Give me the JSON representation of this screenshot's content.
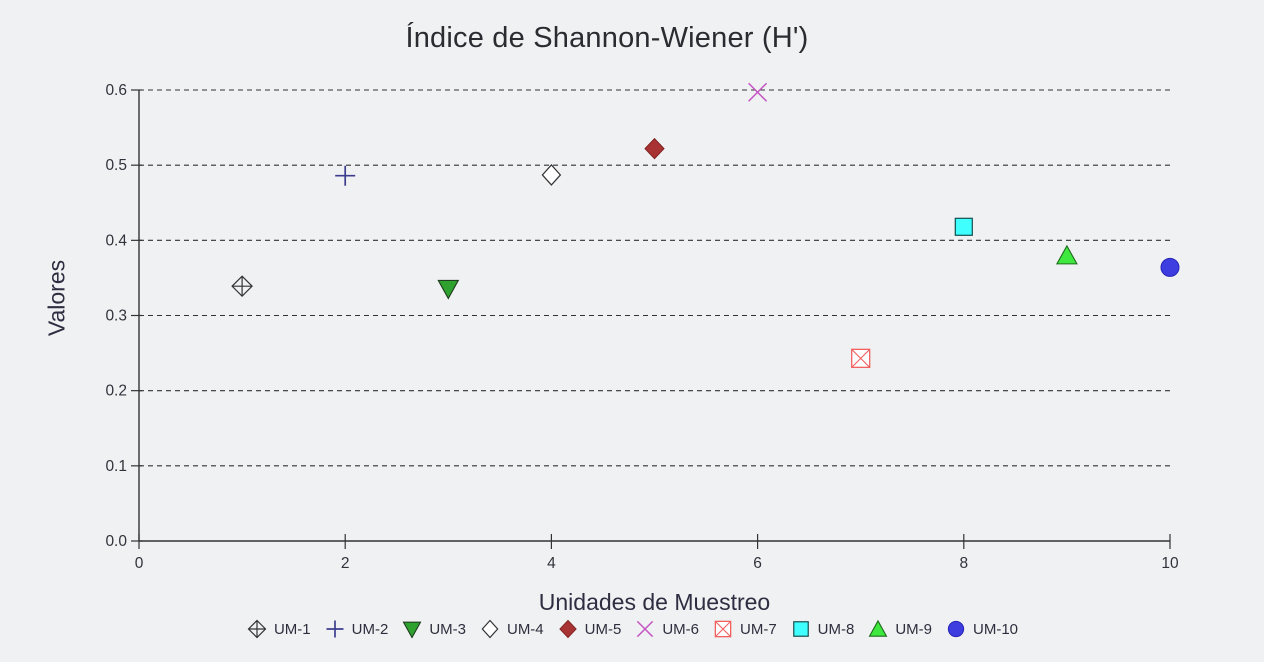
{
  "chart_data": {
    "type": "scatter",
    "title": "Índice de Shannon-Wiener (H')",
    "xlabel": "Unidades de Muestreo",
    "ylabel": "Valores",
    "xlim": [
      0,
      10
    ],
    "ylim": [
      0.0,
      0.6
    ],
    "xticks": [
      0,
      2,
      4,
      6,
      8,
      10
    ],
    "yticks": [
      0.0,
      0.1,
      0.2,
      0.3,
      0.4,
      0.5,
      0.6
    ],
    "grid": "horizontal-dashed",
    "legend_position": "bottom",
    "series": [
      {
        "name": "UM-1",
        "x": 1,
        "y": 0.339,
        "marker": "diamond-plus",
        "color": "#333333",
        "stroke": "#333333"
      },
      {
        "name": "UM-2",
        "x": 2,
        "y": 0.486,
        "marker": "plus",
        "color": "#3d3d8f",
        "stroke": "#3d3d8f"
      },
      {
        "name": "UM-3",
        "x": 3,
        "y": 0.336,
        "marker": "triangle-down",
        "color": "#2fa12f",
        "stroke": "#1f3d1f"
      },
      {
        "name": "UM-4",
        "x": 4,
        "y": 0.487,
        "marker": "diamond-open",
        "color": "#333333",
        "stroke": "#333333"
      },
      {
        "name": "UM-5",
        "x": 5,
        "y": 0.522,
        "marker": "diamond",
        "color": "#a93232",
        "stroke": "#822424"
      },
      {
        "name": "UM-6",
        "x": 6,
        "y": 0.597,
        "marker": "x",
        "color": "#c455c4",
        "stroke": "#c455c4"
      },
      {
        "name": "UM-7",
        "x": 7,
        "y": 0.243,
        "marker": "square-x",
        "color": "#f26060",
        "stroke": "#f26060"
      },
      {
        "name": "UM-8",
        "x": 8,
        "y": 0.418,
        "marker": "square",
        "color": "#3fffff",
        "stroke": "#124f4f"
      },
      {
        "name": "UM-9",
        "x": 9,
        "y": 0.38,
        "marker": "triangle-up",
        "color": "#3fe83f",
        "stroke": "#1d6b1d"
      },
      {
        "name": "UM-10",
        "x": 10,
        "y": 0.364,
        "marker": "circle",
        "color": "#3d3de0",
        "stroke": "#2626b8"
      }
    ]
  },
  "colors": {
    "background": "#f0f1f2",
    "axis": "#333333",
    "grid": "#333333",
    "tick_text": "#32323c",
    "open_marker_fill": "#ffffff"
  }
}
